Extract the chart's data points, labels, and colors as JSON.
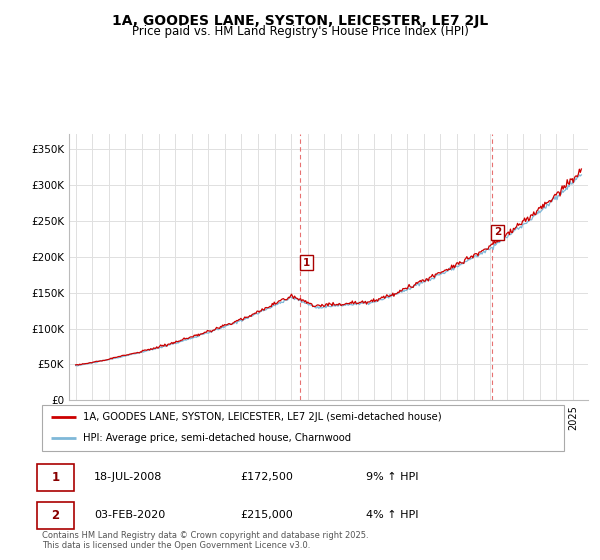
{
  "title": "1A, GOODES LANE, SYSTON, LEICESTER, LE7 2JL",
  "subtitle": "Price paid vs. HM Land Registry's House Price Index (HPI)",
  "ylim": [
    0,
    370000
  ],
  "yticks": [
    0,
    50000,
    100000,
    150000,
    200000,
    250000,
    300000,
    350000
  ],
  "ytick_labels": [
    "£0",
    "£50K",
    "£100K",
    "£150K",
    "£200K",
    "£250K",
    "£300K",
    "£350K"
  ],
  "sale1_year": 2008.542,
  "sale1_price": 172500,
  "sale2_year": 2020.083,
  "sale2_price": 215000,
  "sale1_date_str": "18-JUL-2008",
  "sale1_pct": "9% ↑ HPI",
  "sale2_date_str": "03-FEB-2020",
  "sale2_pct": "4% ↑ HPI",
  "line1_color": "#cc0000",
  "line2_color": "#7fb8d8",
  "vline_color": "#e87070",
  "grid_color": "#e0e0e0",
  "legend1_label": "1A, GOODES LANE, SYSTON, LEICESTER, LE7 2JL (semi-detached house)",
  "legend2_label": "HPI: Average price, semi-detached house, Charnwood",
  "footer": "Contains HM Land Registry data © Crown copyright and database right 2025.\nThis data is licensed under the Open Government Licence v3.0.",
  "title_fontsize": 10,
  "subtitle_fontsize": 8.5
}
